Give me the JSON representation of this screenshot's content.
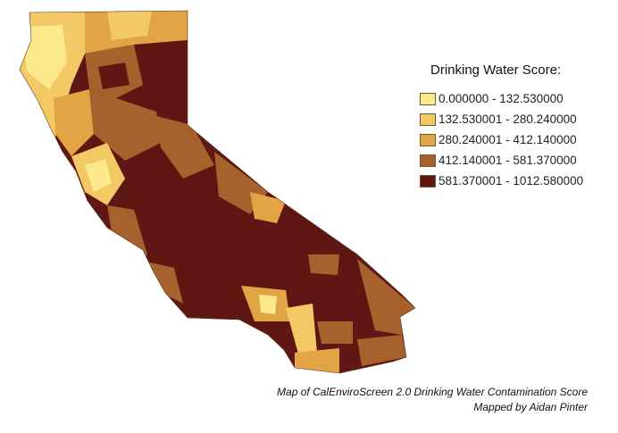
{
  "legend": {
    "title": "Drinking Water Score:",
    "classes": [
      {
        "label": "0.000000 - 132.530000",
        "color": "#fbe98c"
      },
      {
        "label": "132.530001 - 280.240000",
        "color": "#f3c965"
      },
      {
        "label": "280.240001 - 412.140000",
        "color": "#e2a444"
      },
      {
        "label": "412.140001 - 581.370000",
        "color": "#a6612d"
      },
      {
        "label": "581.370001 - 1012.580000",
        "color": "#5e1712"
      }
    ]
  },
  "caption": {
    "line1": "Map of CalEnviroScreen 2.0 Drinking Water Contamination Score",
    "line2": "Mapped by Aidan Pinter"
  }
}
